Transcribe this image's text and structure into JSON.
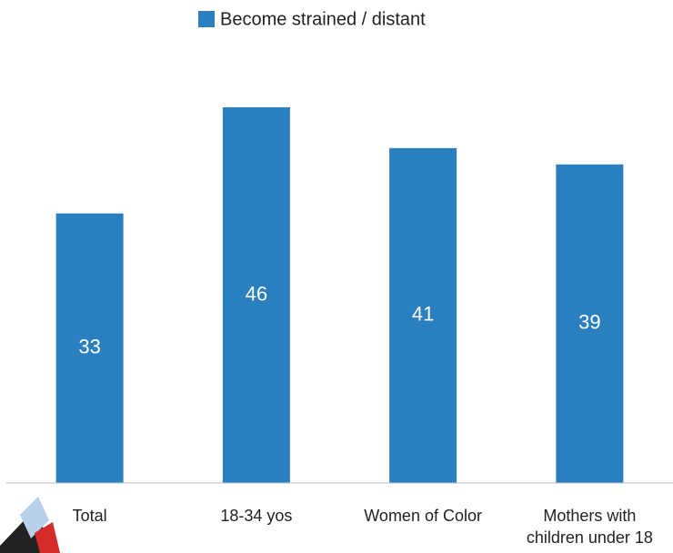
{
  "chart_data": {
    "type": "bar",
    "categories": [
      "Total",
      "18-34 yos",
      "Women of Color",
      "Mothers with children under 18"
    ],
    "series": [
      {
        "name": "Become strained / distant",
        "color": "#2a7fbf",
        "values": [
          33,
          46,
          41,
          39
        ]
      }
    ],
    "ylim": [
      0,
      50
    ],
    "legend": "top"
  }
}
